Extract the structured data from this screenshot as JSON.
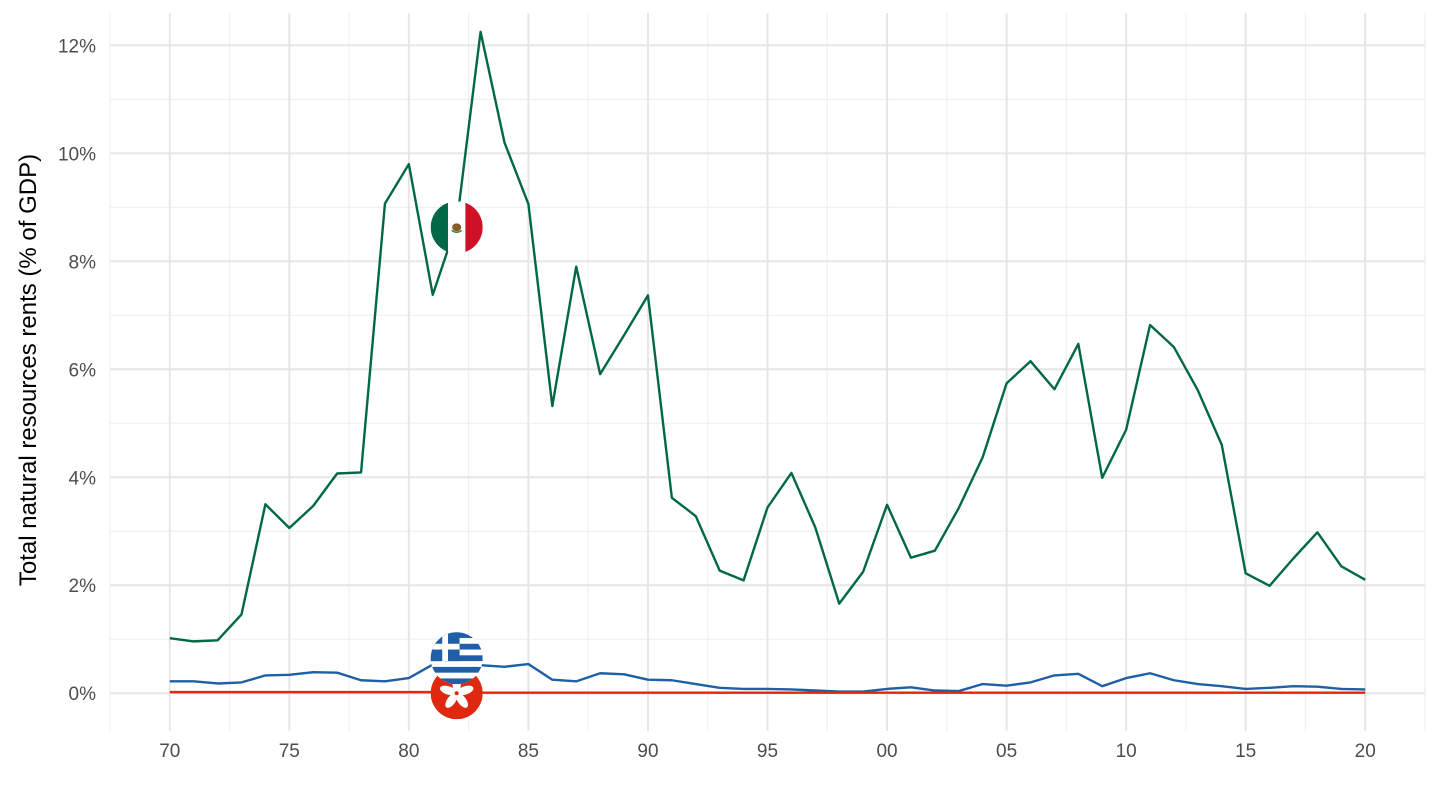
{
  "chart_data": {
    "type": "line",
    "title": "",
    "xlabel": "",
    "ylabel": "Total natural resources rents (% of GDP)",
    "xlim": [
      1967.5,
      2022.5
    ],
    "ylim": [
      -0.007,
      0.126
    ],
    "x_ticks": [
      1970,
      1975,
      1980,
      1985,
      1990,
      1995,
      2000,
      2005,
      2010,
      2015,
      2020
    ],
    "x_tick_labels": [
      "70",
      "75",
      "80",
      "85",
      "90",
      "95",
      "00",
      "05",
      "10",
      "15",
      "20"
    ],
    "y_ticks": [
      0,
      0.02,
      0.04,
      0.06,
      0.08,
      0.1,
      0.12
    ],
    "y_tick_labels": [
      "0%",
      "2%",
      "4%",
      "6%",
      "8%",
      "10%",
      "12%"
    ],
    "grid": true,
    "legend": "none",
    "x": [
      1970,
      1971,
      1972,
      1973,
      1974,
      1975,
      1976,
      1977,
      1978,
      1979,
      1980,
      1981,
      1982,
      1983,
      1984,
      1985,
      1986,
      1987,
      1988,
      1989,
      1990,
      1991,
      1992,
      1993,
      1994,
      1995,
      1996,
      1997,
      1998,
      1999,
      2000,
      2001,
      2002,
      2003,
      2004,
      2005,
      2006,
      2007,
      2008,
      2009,
      2010,
      2011,
      2012,
      2013,
      2014,
      2015,
      2016,
      2017,
      2018,
      2019,
      2020
    ],
    "series": [
      {
        "color": "#006847",
        "flag": "mexico-flag",
        "flag_x": 1982,
        "values": [
          0.0102,
          0.0096,
          0.0098,
          0.0146,
          0.035,
          0.0306,
          0.0347,
          0.0407,
          0.0409,
          0.0907,
          0.098,
          0.0738,
          0.087,
          0.1225,
          0.102,
          0.0906,
          0.0532,
          0.079,
          0.0591,
          0.0663,
          0.0737,
          0.0362,
          0.0328,
          0.0227,
          0.0209,
          0.0344,
          0.0408,
          0.0307,
          0.0166,
          0.0225,
          0.0349,
          0.0251,
          0.0264,
          0.0343,
          0.0437,
          0.0574,
          0.0615,
          0.0563,
          0.0647,
          0.0399,
          0.0488,
          0.0682,
          0.0641,
          0.0561,
          0.046,
          0.0222,
          0.0199,
          0.025,
          0.0298,
          0.0235,
          0.021
        ]
      },
      {
        "color": "#1f5fa6",
        "flag": "greece-flag",
        "flag_x": 1982,
        "values": [
          0.0022,
          0.0022,
          0.0018,
          0.002,
          0.0033,
          0.0034,
          0.0039,
          0.0038,
          0.0024,
          0.0022,
          0.0028,
          0.0053,
          0.0055,
          0.0052,
          0.0049,
          0.0054,
          0.0025,
          0.0022,
          0.0037,
          0.0035,
          0.0025,
          0.0024,
          0.0017,
          0.001,
          0.0008,
          0.0008,
          0.0007,
          0.0005,
          0.0003,
          0.0003,
          0.0008,
          0.0011,
          0.0005,
          0.0004,
          0.0017,
          0.0014,
          0.002,
          0.0033,
          0.0036,
          0.0013,
          0.0028,
          0.0037,
          0.0024,
          0.0017,
          0.0013,
          0.0008,
          0.001,
          0.0013,
          0.0012,
          0.0008,
          0.0007
        ]
      },
      {
        "color": "#de2910",
        "flag": "hong-kong-flag",
        "flag_x": 1982,
        "values": [
          0.0002,
          0.0002,
          0.0002,
          0.0002,
          0.0002,
          0.0002,
          0.0002,
          0.0002,
          0.0002,
          0.0002,
          0.0002,
          0.0002,
          0.0001,
          0.0001,
          0.0001,
          0.0001,
          0.0001,
          0.0001,
          0.0001,
          0.0001,
          0.0001,
          0.0001,
          0.0001,
          0.0001,
          0.0001,
          0.0001,
          0.0001,
          0.0001,
          0.0001,
          0.0001,
          0.0001,
          0.0001,
          0.0001,
          0.0001,
          0.0001,
          0.0001,
          0.0001,
          0.0001,
          0.0001,
          0.0001,
          0.0001,
          0.0001,
          0.0001,
          0.0001,
          0.0001,
          0.0001,
          0.0001,
          0.0001,
          0.0001,
          0.0001,
          0.0001
        ]
      }
    ]
  }
}
